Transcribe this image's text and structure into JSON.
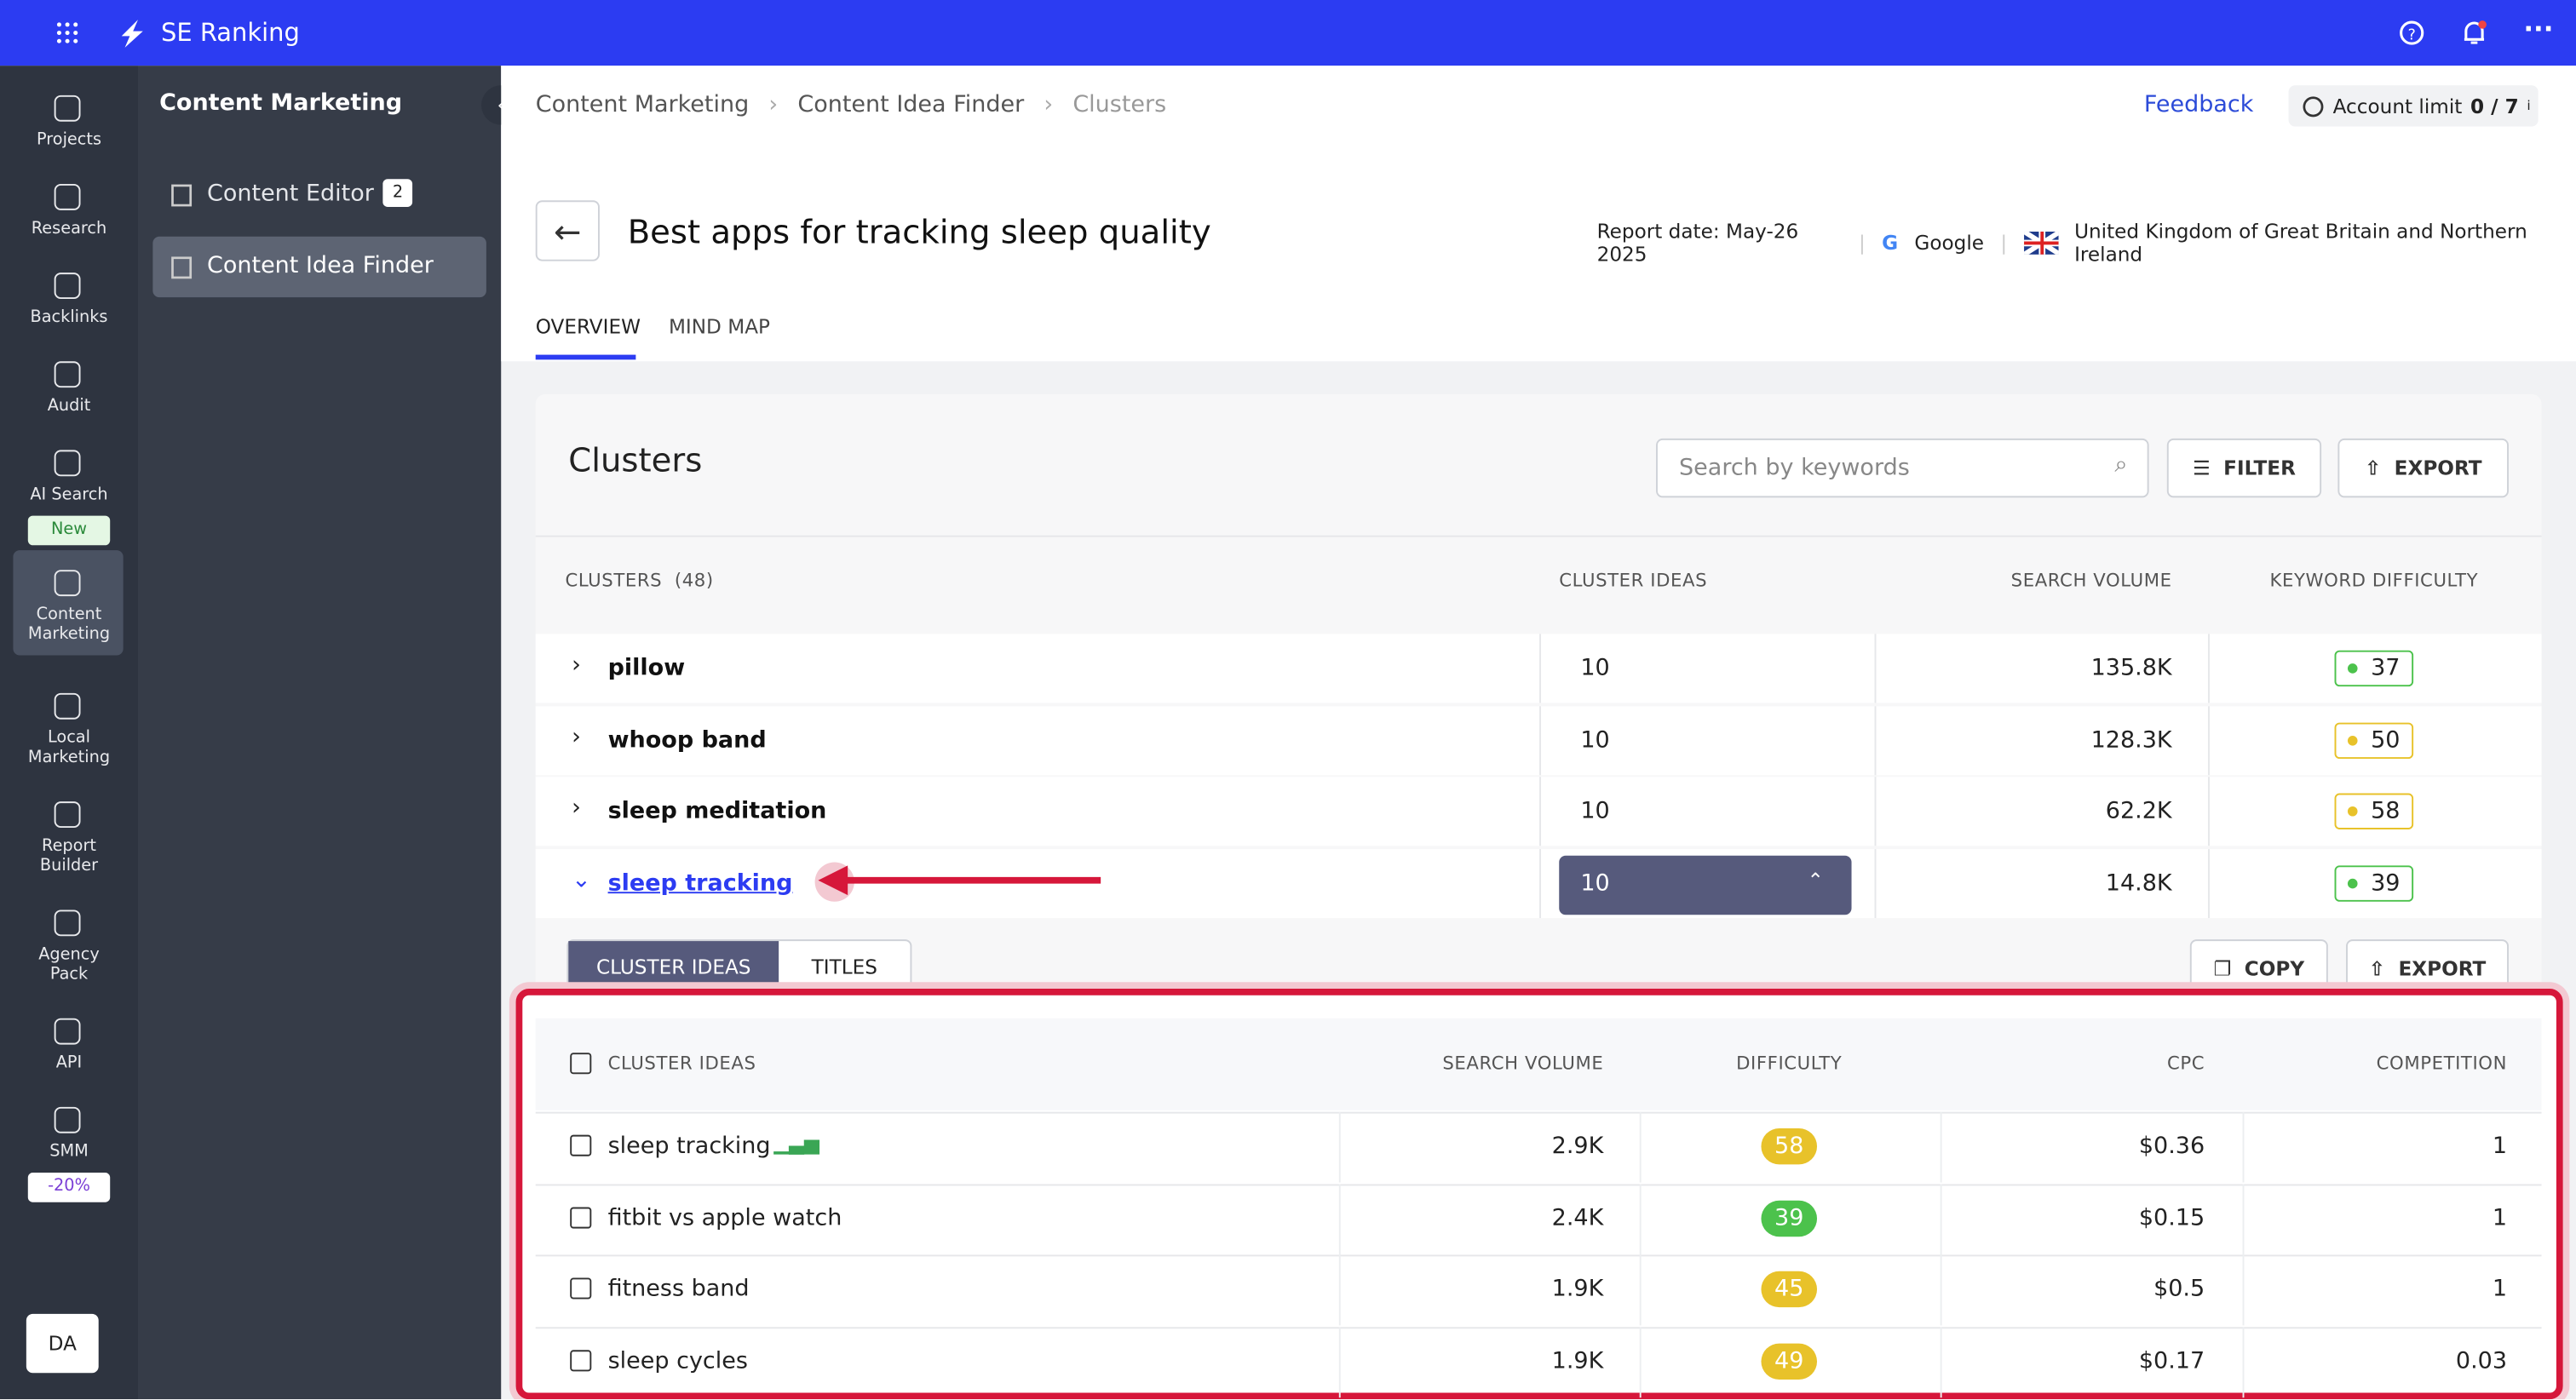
{
  "topbar": {
    "brand": "SE Ranking"
  },
  "sidebar": {
    "items": [
      {
        "label": "Projects"
      },
      {
        "label": "Research"
      },
      {
        "label": "Backlinks"
      },
      {
        "label": "Audit"
      },
      {
        "label": "AI Search",
        "badge": "New"
      },
      {
        "label": "Content Marketing"
      },
      {
        "label": "Local Marketing"
      },
      {
        "label": "Report Builder"
      },
      {
        "label": "Agency Pack"
      },
      {
        "label": "API"
      },
      {
        "label": "SMM",
        "badge": "-20%"
      }
    ],
    "avatar": "DA"
  },
  "subnav": {
    "title": "Content Marketing",
    "items": [
      {
        "label": "Content Editor",
        "badge": "2"
      },
      {
        "label": "Content Idea Finder"
      }
    ]
  },
  "breadcrumbs": [
    "Content Marketing",
    "Content Idea Finder",
    "Clusters"
  ],
  "header_links": {
    "feedback": "Feedback",
    "account_limit": "Account limit",
    "limit_value": "0 / 7",
    "info": "i"
  },
  "report": {
    "title": "Best apps for tracking sleep quality",
    "date": "Report date: May-26 2025",
    "engine": "Google",
    "country": "United Kingdom of Great Britain and Northern Ireland"
  },
  "tabs": [
    "OVERVIEW",
    "MIND MAP"
  ],
  "clusters": {
    "title": "Clusters",
    "search_placeholder": "Search by keywords",
    "filter": "FILTER",
    "export": "EXPORT",
    "columns": [
      "CLUSTERS",
      "(48)",
      "CLUSTER IDEAS",
      "SEARCH VOLUME",
      "KEYWORD DIFFICULTY"
    ],
    "rows": [
      [
        "pillow",
        "10",
        "135.8K",
        "37"
      ],
      [
        "whoop band",
        "10",
        "128.3K",
        "50"
      ],
      [
        "sleep meditation",
        "10",
        "62.2K",
        "58"
      ],
      [
        "sleep tracking",
        "10",
        "14.8K",
        "39"
      ]
    ]
  },
  "ideas": {
    "tabs": [
      "CLUSTER IDEAS",
      "TITLES"
    ],
    "copy": "COPY",
    "export": "EXPORT",
    "columns": [
      "CLUSTER IDEAS",
      "SEARCH VOLUME",
      "DIFFICULTY",
      "CPC",
      "COMPETITION"
    ],
    "rows": [
      [
        "sleep tracking",
        "2.9K",
        "58",
        "$0.36",
        "1"
      ],
      [
        "fitbit vs apple watch",
        "2.4K",
        "39",
        "$0.15",
        "1"
      ],
      [
        "fitness band",
        "1.9K",
        "45",
        "$0.5",
        "1"
      ],
      [
        "sleep cycles",
        "1.9K",
        "49",
        "$0.17",
        "0.03"
      ]
    ]
  }
}
